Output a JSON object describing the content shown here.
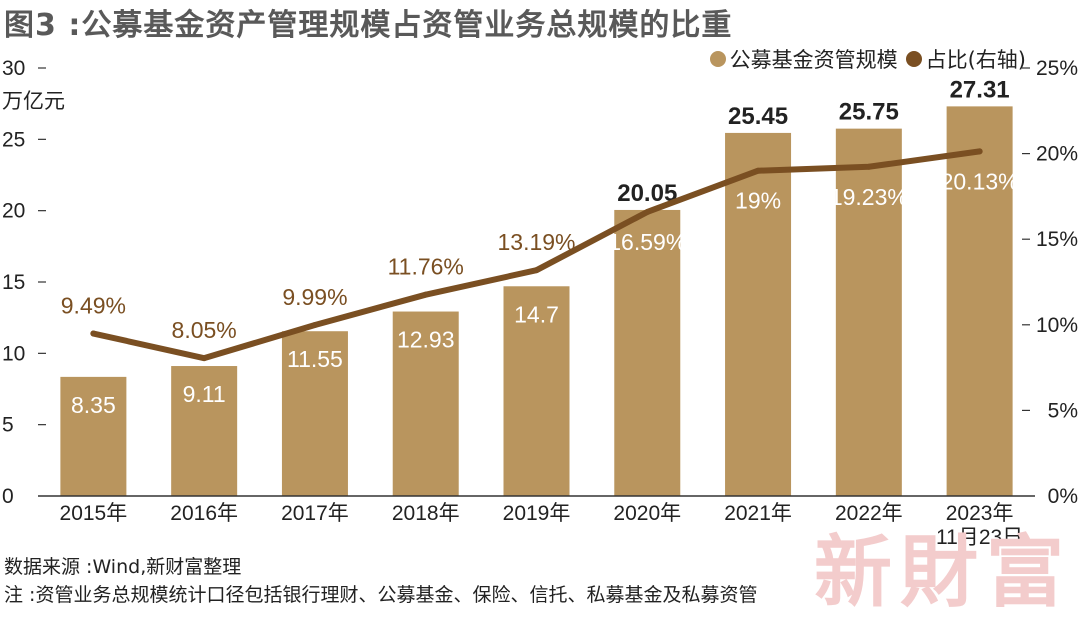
{
  "title": "图3 :公募基金资产管理规模占资管业务总规模的比重",
  "legend": {
    "bar_label": "公募基金资管规模",
    "line_label": "占比(右轴)"
  },
  "colors": {
    "bar": "#b9955e",
    "line": "#7a4f22",
    "title": "#595959"
  },
  "footer": {
    "source": "数据来源 :Wind,新财富整理",
    "note": "注 :资管业务总规模统计口径包括银行理财、公募基金、保险、信托、私募基金及私募资管"
  },
  "watermark": "新財富",
  "chart_data": {
    "type": "bar",
    "categories": [
      "2015年",
      "2016年",
      "2017年",
      "2018年",
      "2019年",
      "2020年",
      "2021年",
      "2022年",
      "2023年"
    ],
    "category_sublabels": [
      "",
      "",
      "",
      "",
      "",
      "",
      "",
      "",
      "11月23日"
    ],
    "ylabel": "万亿元",
    "ylim": [
      0,
      30
    ],
    "yticks": [
      "0",
      "5",
      "10",
      "15",
      "20",
      "25",
      "30"
    ],
    "y2ticks": [
      "0%",
      "5%",
      "10%",
      "15%",
      "20%",
      "25%"
    ],
    "y2lim": [
      0,
      25
    ],
    "series": [
      {
        "name": "公募基金资管规模",
        "type": "bar",
        "axis": "left",
        "values": [
          8.35,
          9.11,
          11.55,
          12.93,
          14.7,
          20.05,
          25.45,
          25.75,
          27.31
        ],
        "labels": [
          "8.35",
          "9.11",
          "11.55",
          "12.93",
          "14.7",
          "20.05",
          "25.45",
          "25.75",
          "27.31"
        ]
      },
      {
        "name": "占比(右轴)",
        "type": "line",
        "axis": "right",
        "values": [
          9.49,
          8.05,
          9.99,
          11.76,
          13.19,
          16.59,
          19,
          19.23,
          20.13
        ],
        "labels": [
          "9.49%",
          "8.05%",
          "9.99%",
          "11.76%",
          "13.19%",
          "16.59%",
          "19%",
          "19.23%",
          "20.13%"
        ]
      }
    ],
    "grid": false,
    "legend_position": "top-right"
  }
}
